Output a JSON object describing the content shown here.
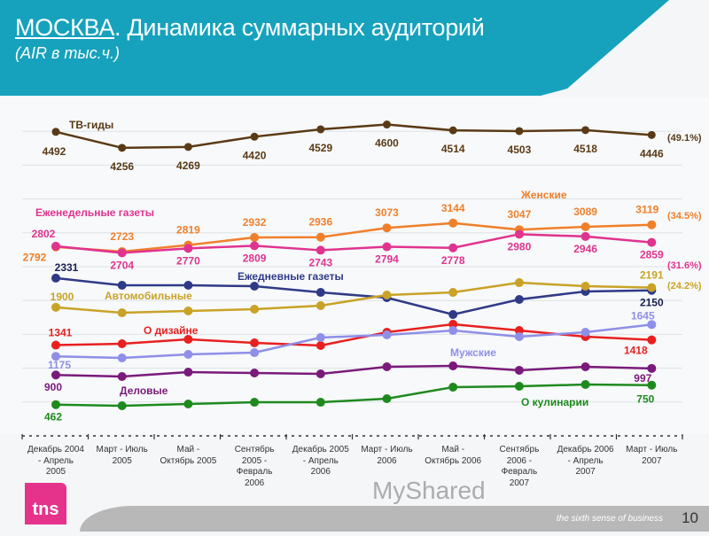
{
  "header": {
    "title_city": "МОСКВА",
    "title_rest": ". Динамика суммарных аудиторий",
    "subtitle": "(AIR в тыс.ч.)"
  },
  "footer": {
    "slogan": "the sixth sense of business",
    "page": "10",
    "logo": "tns",
    "watermark": "MyShared"
  },
  "chart_data": {
    "type": "line",
    "title": "МОСКВА. Динамика суммарных аудиторий",
    "ylabel": "AIR в тыс.ч.",
    "ylim": [
      0,
      4800
    ],
    "grid": true,
    "categories": [
      "Декабрь 2004 - Апрель 2005",
      "Март - Июль 2005",
      "Май - Октябрь 2005",
      "Сентябрь 2005 - Февраль 2006",
      "Декабрь 2005 - Апрель 2006",
      "Март - Июль 2006",
      "Май - Октябрь 2006",
      "Сентябрь 2006 - Февраль 2007",
      "Декабрь 2006 - Апрель 2007",
      "Март - Июль 2007"
    ],
    "category_lines": [
      [
        "Декабрь 2004",
        "- Апрель",
        "2005"
      ],
      [
        "Март - Июль",
        "2005"
      ],
      [
        "Май -",
        "Октябрь 2005"
      ],
      [
        "Сентябрь",
        "2005 -",
        "Февраль",
        "2006"
      ],
      [
        "Декабрь 2005",
        "- Апрель",
        "2006"
      ],
      [
        "Март - Июль",
        "2006"
      ],
      [
        "Май -",
        "Октябрь 2006"
      ],
      [
        "Сентябрь",
        "2006 -",
        "Февраль",
        "2007"
      ],
      [
        "Декабрь 2006",
        "- Апрель",
        "2007"
      ],
      [
        "Март - Июль",
        "2007"
      ]
    ],
    "series": [
      {
        "name": "ТВ-гиды",
        "color": "#5a3a16",
        "share": "(49.1%)",
        "values": [
          4492,
          4256,
          4269,
          4420,
          4529,
          4600,
          4514,
          4503,
          4518,
          4446
        ],
        "labeled": [
          0,
          1,
          2,
          3,
          4,
          5,
          6,
          7,
          8,
          9
        ]
      },
      {
        "name": "Женские",
        "color": "#f07f2a",
        "share": "(34.5%)",
        "values": [
          2792,
          2723,
          2819,
          2932,
          2936,
          3073,
          3144,
          3047,
          3089,
          3119
        ],
        "labeled": [
          0,
          1,
          2,
          3,
          4,
          5,
          6,
          7,
          8,
          9
        ]
      },
      {
        "name": "Еженедельные газеты",
        "color": "#e0338f",
        "share": "(31.6%)",
        "values": [
          2802,
          2704,
          2770,
          2809,
          2743,
          2794,
          2778,
          2980,
          2946,
          2859
        ],
        "labeled": [
          0,
          1,
          2,
          3,
          4,
          5,
          6,
          7,
          8,
          9
        ]
      },
      {
        "name": "Ежедневные газеты",
        "color": "#2f3a87",
        "share": "",
        "values": [
          2331,
          2225,
          2225,
          2212,
          2120,
          2042,
          1793,
          2016,
          2134,
          2150
        ],
        "labeled": [
          0,
          9
        ]
      },
      {
        "name": "Автомобильные",
        "color": "#c9a227",
        "share": "(24.2%)",
        "values": [
          1900,
          1819,
          1846,
          1872,
          1924,
          2081,
          2120,
          2264,
          2212,
          2191
        ],
        "labeled": [
          0,
          9
        ]
      },
      {
        "name": "О дизайне",
        "color": "#e82020",
        "share": "",
        "values": [
          1341,
          1361,
          1427,
          1374,
          1335,
          1531,
          1649,
          1557,
          1466,
          1418
        ],
        "labeled": [
          0,
          9
        ]
      },
      {
        "name": "Мужские",
        "color": "#8f8fe8",
        "share": "",
        "values": [
          1175,
          1152,
          1204,
          1230,
          1453,
          1492,
          1557,
          1466,
          1531,
          1645
        ],
        "labeled": [
          0,
          9
        ]
      },
      {
        "name": "Деловые",
        "color": "#7a1a7a",
        "share": "",
        "values": [
          900,
          877,
          942,
          929,
          916,
          1021,
          1034,
          969,
          1021,
          997
        ],
        "labeled": [
          0,
          9
        ]
      },
      {
        "name": "О кулинарии",
        "color": "#1e8a1e",
        "share": "",
        "values": [
          462,
          445,
          471,
          497,
          497,
          550,
          720,
          733,
          759,
          750
        ],
        "labeled": [
          0,
          9
        ]
      }
    ]
  }
}
